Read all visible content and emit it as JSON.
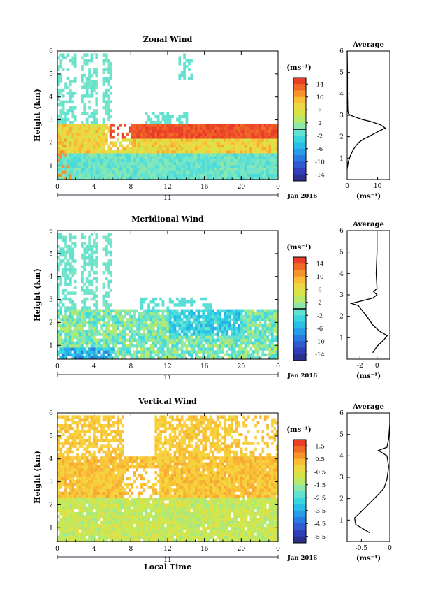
{
  "figure": {
    "date_label": "Jan 2016",
    "x_title": "Local Time",
    "day_label": "11",
    "profile_title": "Average",
    "unit_label": "(ms⁻¹)"
  },
  "chart_data": [
    {
      "type": "heatmap",
      "title": "Zonal Wind",
      "ylabel": "Height (km)",
      "x_ticks": [
        "0",
        "4",
        "8",
        "12",
        "16",
        "20",
        "0"
      ],
      "xlim": [
        0,
        24
      ],
      "ylim": [
        0.4,
        6
      ],
      "y_ticks": [
        1,
        2,
        3,
        4,
        5,
        6
      ],
      "colorbar": {
        "unit": "(ms⁻¹)",
        "range": [
          -16,
          16
        ],
        "ticks": [
          14,
          10,
          6,
          2,
          -2,
          -6,
          -10,
          -14
        ],
        "zero_line": 0
      },
      "profile": {
        "xlabel": "(ms⁻¹)",
        "xlim": [
          0,
          14
        ],
        "x_ticks": [
          0,
          10
        ],
        "ylim": [
          0,
          6
        ],
        "y_ticks": [
          1,
          2,
          3,
          4,
          5,
          6
        ],
        "points": [
          [
            0,
            0.5
          ],
          [
            0.3,
            0.8
          ],
          [
            1,
            1.1
          ],
          [
            2,
            1.4
          ],
          [
            3,
            1.6
          ],
          [
            4,
            1.75
          ],
          [
            5.5,
            1.9
          ],
          [
            7,
            2.0
          ],
          [
            9,
            2.15
          ],
          [
            11,
            2.3
          ],
          [
            12.5,
            2.4
          ],
          [
            11,
            2.55
          ],
          [
            8,
            2.7
          ],
          [
            5,
            2.8
          ],
          [
            2,
            2.95
          ],
          [
            0.5,
            3.05
          ],
          [
            0.2,
            3.2
          ],
          [
            0.1,
            4
          ],
          [
            0.1,
            5
          ],
          [
            0,
            6
          ]
        ]
      }
    },
    {
      "type": "heatmap",
      "title": "Meridional Wind",
      "ylabel": "Height (km)",
      "x_ticks": [
        "0",
        "4",
        "8",
        "12",
        "16",
        "20",
        "0"
      ],
      "xlim": [
        0,
        24
      ],
      "ylim": [
        0.4,
        6
      ],
      "y_ticks": [
        1,
        2,
        3,
        4,
        5,
        6
      ],
      "colorbar": {
        "unit": "(ms⁻¹)",
        "range": [
          -16,
          16
        ],
        "ticks": [
          14,
          10,
          6,
          2,
          -2,
          -6,
          -10,
          -14
        ],
        "zero_line": 0
      },
      "profile": {
        "xlabel": "(ms⁻¹)",
        "xlim": [
          -3.5,
          1.5
        ],
        "x_ticks": [
          -2,
          0
        ],
        "ylim": [
          0,
          6
        ],
        "y_ticks": [
          1,
          2,
          3,
          4,
          5,
          6
        ],
        "points": [
          [
            -0.5,
            0.3
          ],
          [
            0,
            0.6
          ],
          [
            0.8,
            0.9
          ],
          [
            1.2,
            1.1
          ],
          [
            0.3,
            1.3
          ],
          [
            -0.5,
            1.6
          ],
          [
            -1.2,
            2.0
          ],
          [
            -1.8,
            2.3
          ],
          [
            -2.2,
            2.5
          ],
          [
            -3.0,
            2.6
          ],
          [
            -2.0,
            2.7
          ],
          [
            -0.5,
            2.85
          ],
          [
            0,
            3.0
          ],
          [
            -0.4,
            3.15
          ],
          [
            0,
            3.3
          ],
          [
            -0.1,
            4
          ],
          [
            0,
            5
          ],
          [
            0,
            6
          ]
        ]
      }
    },
    {
      "type": "heatmap",
      "title": "Vertical Wind",
      "ylabel": "Height (km)",
      "xlabel": "Local Time",
      "x_ticks": [
        "0",
        "4",
        "8",
        "12",
        "16",
        "20",
        "0"
      ],
      "xlim": [
        0,
        24
      ],
      "ylim": [
        0.4,
        6
      ],
      "y_ticks": [
        1,
        2,
        3,
        4,
        5,
        6
      ],
      "colorbar": {
        "unit": "(ms⁻¹)",
        "range": [
          -6.0,
          2.0
        ],
        "ticks": [
          1.5,
          0.5,
          -0.5,
          -1.5,
          -2.5,
          -3.5,
          -4.5,
          -5.5
        ]
      },
      "profile": {
        "xlabel": "(ms⁻¹)",
        "xlim": [
          -0.75,
          0.0
        ],
        "x_ticks": [
          -0.5,
          0.0
        ],
        "ylim": [
          0,
          6
        ],
        "y_ticks": [
          1,
          2,
          3,
          4,
          5,
          6
        ],
        "points": [
          [
            -0.35,
            0.4
          ],
          [
            -0.6,
            0.8
          ],
          [
            -0.62,
            1.1
          ],
          [
            -0.5,
            1.4
          ],
          [
            -0.35,
            1.8
          ],
          [
            -0.2,
            2.2
          ],
          [
            -0.1,
            2.5
          ],
          [
            -0.05,
            2.9
          ],
          [
            -0.02,
            3.5
          ],
          [
            -0.05,
            4.0
          ],
          [
            -0.2,
            4.25
          ],
          [
            -0.05,
            4.4
          ],
          [
            -0.02,
            4.8
          ],
          [
            0,
            5.5
          ],
          [
            0,
            6
          ]
        ]
      }
    }
  ]
}
